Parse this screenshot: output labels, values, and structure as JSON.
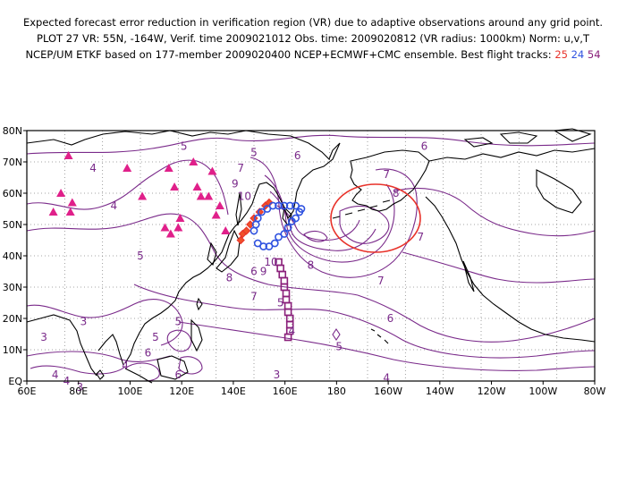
{
  "header": {
    "line1": "Expected forecast error reduction in verification region (VR) due to adaptive observations around any grid point.",
    "line2": "PLOT 27 VR: 55N, -164W, Verif. time 2009021012 Obs. time: 2009020812 (VR radius: 1000km) Norm: u,v,T",
    "line3_prefix": "NCEP/UM ETKF based on 177-member 2009020400 NCEP+ECMWF+CMC ensemble. Best flight tracks:",
    "track_25": "25",
    "track_24": "24",
    "track_54": "54"
  },
  "axes": {
    "lon_labels": [
      "60E",
      "80E",
      "100E",
      "120E",
      "140E",
      "160E",
      "180",
      "160W",
      "140W",
      "120W",
      "100W",
      "80W"
    ],
    "lat_labels": [
      "EQ",
      "10N",
      "20N",
      "30N",
      "40N",
      "50N",
      "60N",
      "70N",
      "80N"
    ]
  },
  "contour_labels": [
    {
      "t": "5",
      "lon": 143,
      "lat": 75
    },
    {
      "t": "5",
      "lon": 180,
      "lat": 73
    },
    {
      "t": "6",
      "lon": 203,
      "lat": 72
    },
    {
      "t": "6",
      "lon": 270,
      "lat": 75
    },
    {
      "t": "7",
      "lon": 250,
      "lat": 66
    },
    {
      "t": "7",
      "lon": 173,
      "lat": 68
    },
    {
      "t": "4",
      "lon": 95,
      "lat": 68
    },
    {
      "t": "4",
      "lon": 106,
      "lat": 56
    },
    {
      "t": "9",
      "lon": 170,
      "lat": 63
    },
    {
      "t": "10",
      "lon": 175,
      "lat": 59
    },
    {
      "t": "8",
      "lon": 255,
      "lat": 60
    },
    {
      "t": "10",
      "lon": 189,
      "lat": 38
    },
    {
      "t": "9",
      "lon": 185,
      "lat": 35
    },
    {
      "t": "8",
      "lon": 210,
      "lat": 37
    },
    {
      "t": "8",
      "lon": 167,
      "lat": 33
    },
    {
      "t": "7",
      "lon": 180,
      "lat": 27
    },
    {
      "t": "7",
      "lon": 268,
      "lat": 46
    },
    {
      "t": "7",
      "lon": 247,
      "lat": 32
    },
    {
      "t": "6",
      "lon": 180,
      "lat": 35
    },
    {
      "t": "5",
      "lon": 120,
      "lat": 40
    },
    {
      "t": "5",
      "lon": 194,
      "lat": 25
    },
    {
      "t": "6",
      "lon": 252,
      "lat": 20
    },
    {
      "t": "5",
      "lon": 140,
      "lat": 19
    },
    {
      "t": "5",
      "lon": 225,
      "lat": 11
    },
    {
      "t": "4",
      "lon": 200,
      "lat": 16
    },
    {
      "t": "4",
      "lon": 250,
      "lat": 1
    },
    {
      "t": "5",
      "lon": 128,
      "lat": 14
    },
    {
      "t": "6",
      "lon": 124,
      "lat": 9
    },
    {
      "t": "3",
      "lon": 69,
      "lat": 14
    },
    {
      "t": "3",
      "lon": 90,
      "lat": 19
    },
    {
      "t": "4",
      "lon": 75,
      "lat": 2
    },
    {
      "t": "4",
      "lon": 81,
      "lat": 0
    },
    {
      "t": "3",
      "lon": 88,
      "lat": -2
    },
    {
      "t": "4",
      "lon": 112,
      "lat": 5
    },
    {
      "t": "6",
      "lon": 140,
      "lat": 2
    },
    {
      "t": "3",
      "lon": 192,
      "lat": 2
    }
  ],
  "tracks": {
    "track_25_red": [
      [
        173,
        45
      ],
      [
        174,
        47
      ],
      [
        176,
        48
      ],
      [
        178,
        50
      ],
      [
        180,
        52
      ],
      [
        183,
        54
      ],
      [
        186,
        56
      ],
      [
        188,
        57
      ]
    ],
    "track_24_blue": [
      [
        182,
        44
      ],
      [
        185,
        43
      ],
      [
        188,
        43
      ],
      [
        191,
        44
      ],
      [
        193,
        46
      ],
      [
        196,
        47
      ],
      [
        198,
        49
      ],
      [
        200,
        51
      ],
      [
        202,
        52
      ],
      [
        204,
        54
      ],
      [
        205,
        55
      ],
      [
        202,
        56
      ],
      [
        199,
        56
      ],
      [
        196,
        56
      ],
      [
        193,
        56
      ],
      [
        190,
        56
      ],
      [
        187,
        55
      ],
      [
        184,
        54
      ],
      [
        182,
        52
      ],
      [
        181,
        50
      ],
      [
        180,
        48
      ]
    ],
    "track_54_purple": [
      [
        193,
        38
      ],
      [
        194,
        36
      ],
      [
        195,
        34
      ],
      [
        196,
        32
      ],
      [
        196,
        30
      ],
      [
        197,
        28
      ],
      [
        197,
        26
      ],
      [
        198,
        24
      ],
      [
        198,
        22
      ],
      [
        199,
        20
      ],
      [
        199,
        18
      ],
      [
        199,
        16
      ],
      [
        198,
        14
      ]
    ],
    "raob_triangles": [
      [
        82,
        72
      ],
      [
        78,
        60
      ],
      [
        84,
        57
      ],
      [
        83,
        54
      ],
      [
        74,
        54
      ],
      [
        113,
        68
      ],
      [
        121,
        59
      ],
      [
        135,
        68
      ],
      [
        148,
        70
      ],
      [
        150,
        62
      ],
      [
        158,
        67
      ],
      [
        156,
        59
      ],
      [
        133,
        49
      ],
      [
        136,
        47
      ],
      [
        140,
        49
      ],
      [
        141,
        52
      ],
      [
        138,
        62
      ],
      [
        162,
        56
      ],
      [
        160,
        53
      ],
      [
        165,
        48
      ],
      [
        152,
        59
      ]
    ]
  }
}
